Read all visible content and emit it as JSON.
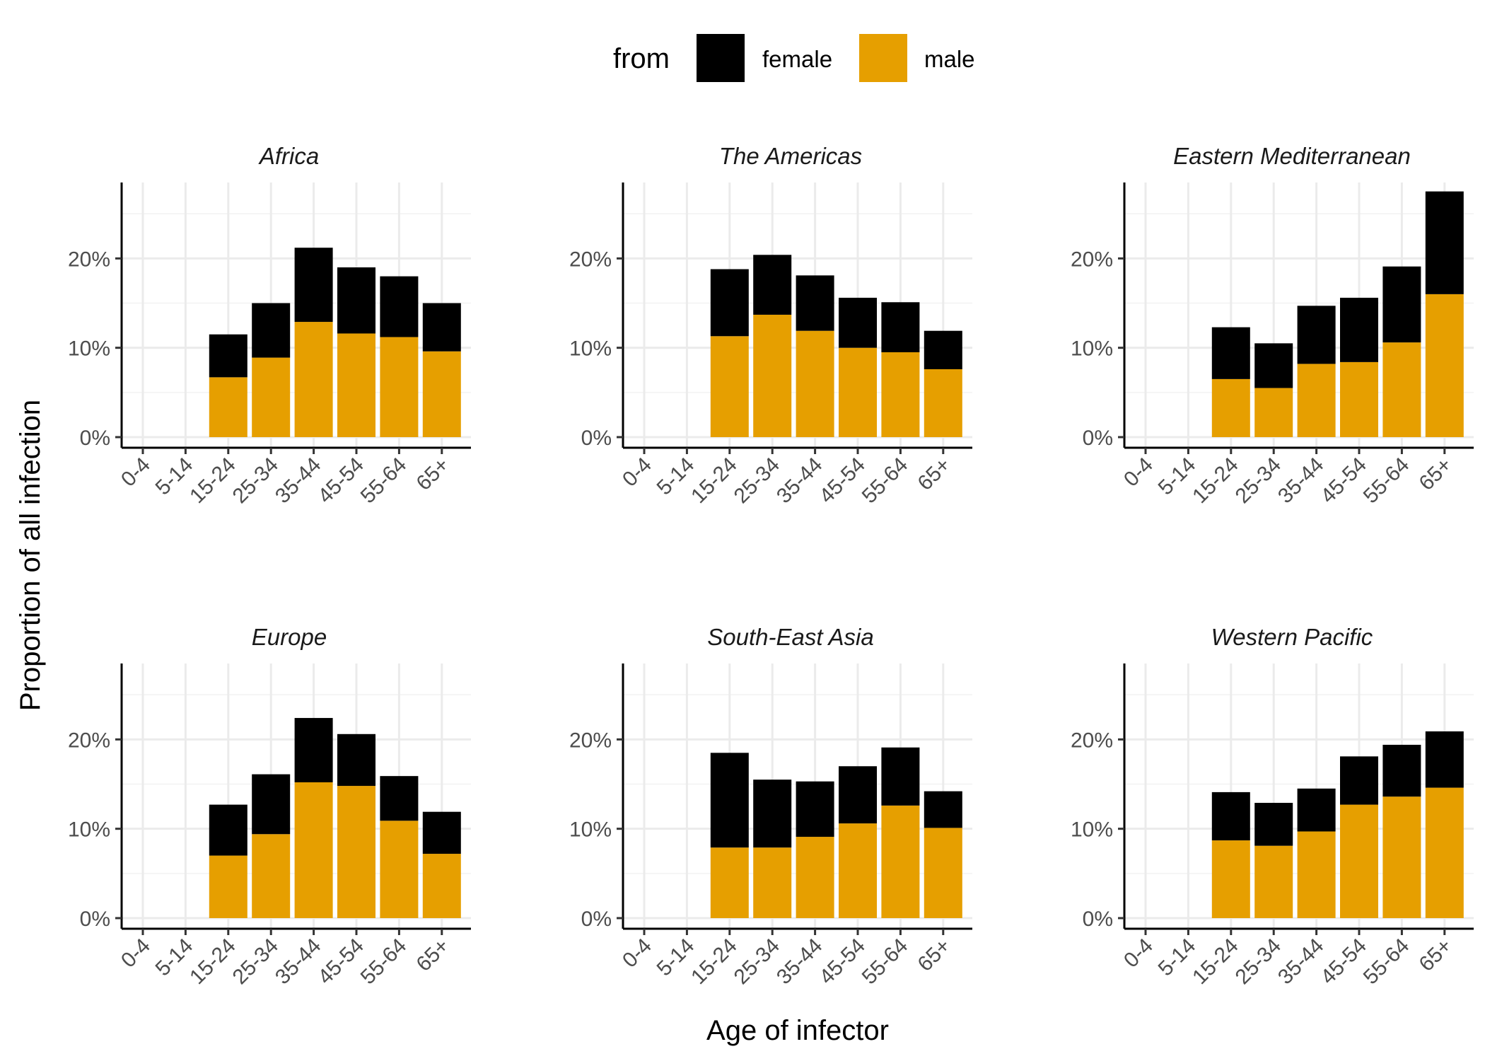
{
  "chart_data": {
    "type": "bar",
    "stacked": true,
    "title": "",
    "xlabel": "Age of infector",
    "ylabel": "Proportion of all infection",
    "categories": [
      "0-4",
      "5-14",
      "15-24",
      "25-34",
      "35-44",
      "45-54",
      "55-64",
      "65+"
    ],
    "y_ticks": [
      0,
      10,
      20
    ],
    "y_tick_labels": [
      "0%",
      "10%",
      "20%"
    ],
    "ylim": [
      0,
      28.5
    ],
    "grid": true,
    "legend": {
      "title": "from",
      "position": "top",
      "entries": [
        {
          "name": "female",
          "color": "#000000"
        },
        {
          "name": "male",
          "color": "#E69F00"
        }
      ]
    },
    "panels": [
      {
        "title": "Africa",
        "series": [
          {
            "name": "male",
            "values": [
              0,
              0,
              6.7,
              8.9,
              12.9,
              11.6,
              11.2,
              9.6
            ]
          },
          {
            "name": "female",
            "values": [
              0,
              0,
              4.8,
              6.1,
              8.3,
              7.4,
              6.8,
              5.4
            ]
          }
        ]
      },
      {
        "title": "The Americas",
        "series": [
          {
            "name": "male",
            "values": [
              0,
              0,
              11.3,
              13.7,
              11.9,
              10.0,
              9.5,
              7.6
            ]
          },
          {
            "name": "female",
            "values": [
              0,
              0,
              7.5,
              6.7,
              6.2,
              5.6,
              5.6,
              4.3
            ]
          }
        ]
      },
      {
        "title": "Eastern Mediterranean",
        "series": [
          {
            "name": "male",
            "values": [
              0,
              0,
              6.5,
              5.5,
              8.2,
              8.4,
              10.6,
              16.0
            ]
          },
          {
            "name": "female",
            "values": [
              0,
              0,
              5.8,
              5.0,
              6.5,
              7.2,
              8.5,
              11.5
            ]
          }
        ]
      },
      {
        "title": "Europe",
        "series": [
          {
            "name": "male",
            "values": [
              0,
              0,
              7.0,
              9.4,
              15.2,
              14.8,
              10.9,
              7.2
            ]
          },
          {
            "name": "female",
            "values": [
              0,
              0,
              5.7,
              6.7,
              7.2,
              5.8,
              5.0,
              4.7
            ]
          }
        ]
      },
      {
        "title": "South-East Asia",
        "series": [
          {
            "name": "male",
            "values": [
              0,
              0,
              7.9,
              7.9,
              9.1,
              10.6,
              12.6,
              10.1
            ]
          },
          {
            "name": "female",
            "values": [
              0,
              0,
              10.6,
              7.6,
              6.2,
              6.4,
              6.5,
              4.1
            ]
          }
        ]
      },
      {
        "title": "Western Pacific",
        "series": [
          {
            "name": "male",
            "values": [
              0,
              0,
              8.7,
              8.1,
              9.7,
              12.7,
              13.6,
              14.6
            ]
          },
          {
            "name": "female",
            "values": [
              0,
              0,
              5.4,
              4.8,
              4.8,
              5.4,
              5.8,
              6.3
            ]
          }
        ]
      }
    ]
  }
}
